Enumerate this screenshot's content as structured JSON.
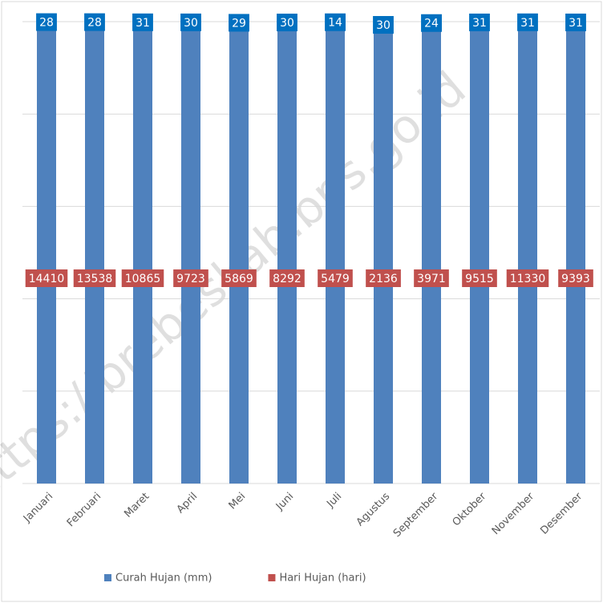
{
  "chart_data": {
    "type": "bar",
    "stacking": "percent",
    "categories": [
      "Januari",
      "Februari",
      "Maret",
      "April",
      "Mei",
      "Juni",
      "Juli",
      "Agustus",
      "September",
      "Oktober",
      "November",
      "Desember"
    ],
    "series": [
      {
        "name": "Curah Hujan (mm)",
        "color": "#4f81bd",
        "label_color": "#c0504d",
        "values": [
          14410,
          13538,
          10865,
          9723,
          5869,
          8292,
          5479,
          2136,
          3971,
          9515,
          11330,
          9393
        ]
      },
      {
        "name": "Hari Hujan (hari)",
        "color": "#c0504d",
        "label_color": "#0070c0",
        "values": [
          28,
          28,
          31,
          30,
          29,
          30,
          14,
          30,
          24,
          31,
          31,
          31
        ]
      }
    ],
    "ylim": [
      0,
      100
    ],
    "yticks": [
      0,
      20,
      40,
      60,
      80,
      100
    ],
    "grid": true,
    "watermark": "https://brebeskab.bps.go.id"
  }
}
